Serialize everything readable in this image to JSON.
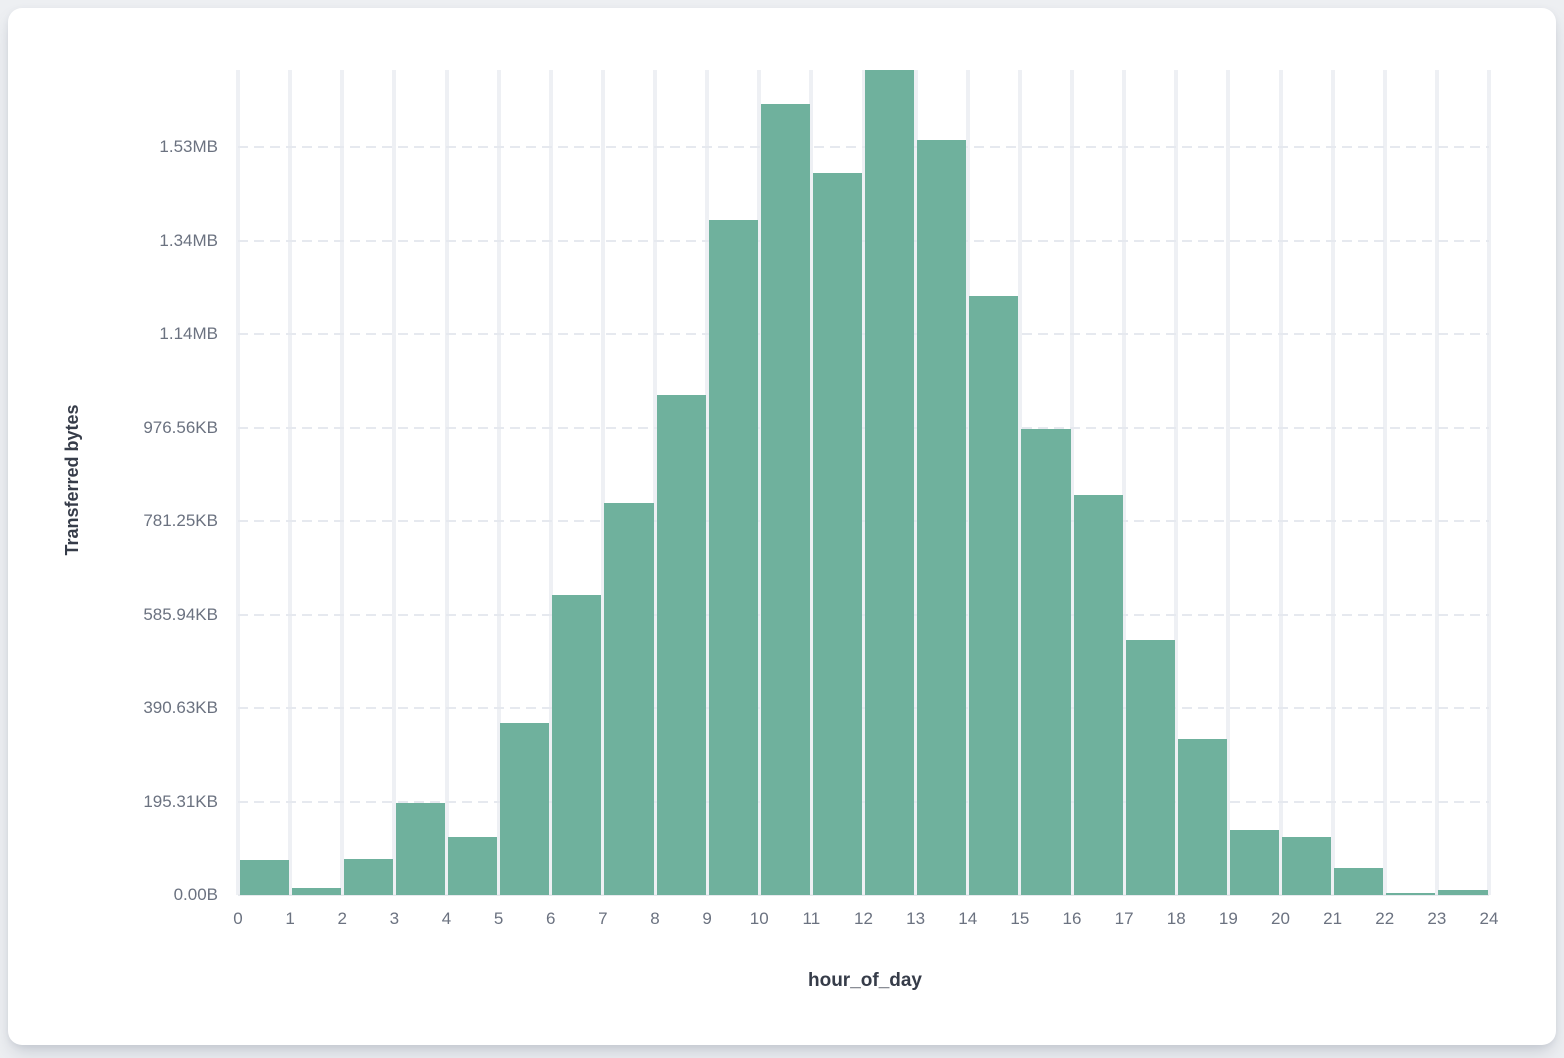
{
  "page": {
    "background_color": "#edeff2",
    "card_color": "#ffffff"
  },
  "chart_data": {
    "type": "bar",
    "subtype": "histogram",
    "title": "",
    "xlabel": "hour_of_day",
    "ylabel": "Transferred bytes",
    "unit": "bytes",
    "bar_color": "#6fb19d",
    "grid": {
      "vertical": true,
      "horizontal": "dashed"
    },
    "legend": "none",
    "bin_start_hours": [
      0,
      1,
      2,
      3,
      4,
      5,
      6,
      7,
      8,
      9,
      10,
      11,
      12,
      13,
      14,
      15,
      16,
      17,
      18,
      19,
      20,
      21,
      22,
      23
    ],
    "values": [
      74000,
      16000,
      78000,
      196000,
      125000,
      368000,
      642000,
      839000,
      1069000,
      1444000,
      1692000,
      1545000,
      1765000,
      1615000,
      1281000,
      998000,
      856000,
      546000,
      333000,
      140000,
      125000,
      57000,
      3500,
      10500
    ],
    "ylim": [
      0,
      1765000
    ],
    "xlim": [
      0,
      24
    ],
    "xticks": {
      "values": [
        0,
        1,
        2,
        3,
        4,
        5,
        6,
        7,
        8,
        9,
        10,
        11,
        12,
        13,
        14,
        15,
        16,
        17,
        18,
        19,
        20,
        21,
        22,
        23,
        24
      ],
      "labels": [
        "0",
        "1",
        "2",
        "3",
        "4",
        "5",
        "6",
        "7",
        "8",
        "9",
        "10",
        "11",
        "12",
        "13",
        "14",
        "15",
        "16",
        "17",
        "18",
        "19",
        "20",
        "21",
        "22",
        "23",
        "24"
      ]
    },
    "yticks": {
      "values": [
        0,
        200000,
        400000,
        600000,
        800000,
        1000000,
        1200000,
        1400000,
        1600000
      ],
      "labels": [
        "0.00B",
        "195.31KB",
        "390.63KB",
        "585.94KB",
        "781.25KB",
        "976.56KB",
        "1.14MB",
        "1.34MB",
        "1.53MB"
      ]
    }
  }
}
